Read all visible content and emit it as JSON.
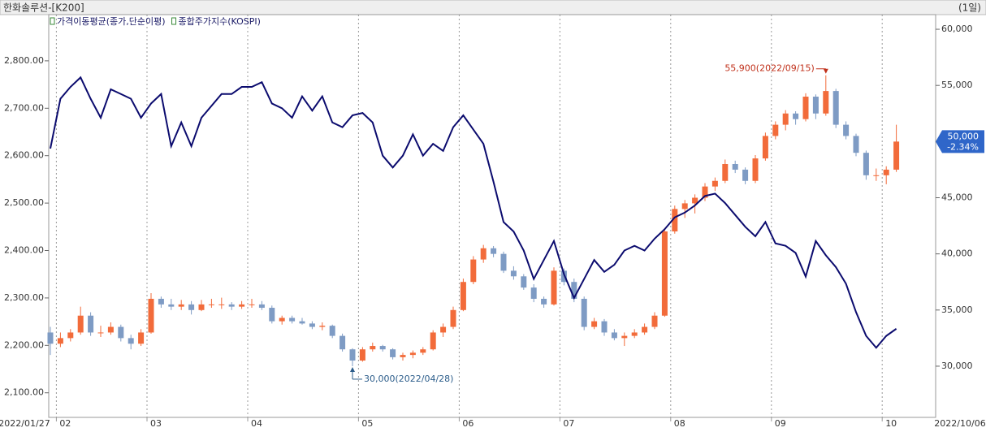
{
  "chart_data": {
    "type": "candlestick",
    "title": "한화솔루션-[K200]",
    "period": "(1일)",
    "start_date": "2022/01/27",
    "end_date": "2022/10/06",
    "categories": [
      null,
      "02",
      null,
      null,
      null,
      null,
      null,
      null,
      null,
      null,
      "03",
      null,
      null,
      null,
      null,
      null,
      null,
      null,
      null,
      null,
      "04",
      null,
      null,
      null,
      null,
      null,
      null,
      null,
      null,
      null,
      null,
      "05",
      null,
      null,
      null,
      null,
      null,
      null,
      null,
      null,
      null,
      "06",
      null,
      null,
      null,
      null,
      null,
      null,
      null,
      null,
      null,
      "07",
      null,
      null,
      null,
      null,
      null,
      null,
      null,
      null,
      null,
      null,
      "08",
      null,
      null,
      null,
      null,
      null,
      null,
      null,
      null,
      null,
      "09",
      null,
      null,
      null,
      null,
      null,
      null,
      null,
      null,
      null,
      null,
      "10",
      null
    ],
    "series": [
      {
        "name": "가격이동평균(종가,단순이평)",
        "type": "candlestick",
        "axis": "y2",
        "up_color": "#f26b3a",
        "down_color": "#7e9bc4",
        "open": [
          33000,
          32000,
          32500,
          33000,
          34500,
          33000,
          33000,
          33500,
          32500,
          32000,
          33000,
          36000,
          35500,
          35300,
          35500,
          35000,
          35500,
          35500,
          35500,
          35300,
          35500,
          35500,
          35200,
          34000,
          34300,
          34000,
          33800,
          33500,
          33600,
          32700,
          31500,
          30500,
          31500,
          31800,
          31500,
          30800,
          31000,
          31200,
          31500,
          33000,
          33500,
          35000,
          37500,
          39500,
          40500,
          40000,
          38500,
          38000,
          37000,
          36000,
          35500,
          38500,
          37500,
          36000,
          33500,
          34000,
          33000,
          32500,
          32700,
          33000,
          33500,
          34500,
          42000,
          44000,
          44500,
          45000,
          46000,
          46500,
          48000,
          47500,
          46500,
          48500,
          50500,
          51500,
          52500,
          52000,
          54000,
          52500,
          54500,
          51500,
          50500,
          49000,
          47000,
          47000,
          47500
        ],
        "high": [
          33500,
          33000,
          33300,
          35300,
          34800,
          33600,
          33900,
          33700,
          32800,
          33300,
          36500,
          36200,
          36000,
          35900,
          35800,
          35900,
          36000,
          36100,
          35700,
          35800,
          36000,
          35800,
          35400,
          34500,
          34500,
          34300,
          34000,
          33900,
          33700,
          32900,
          31600,
          31700,
          32100,
          31900,
          31600,
          31200,
          31400,
          31700,
          33200,
          33800,
          35300,
          37800,
          39800,
          40800,
          40700,
          40200,
          38900,
          38200,
          37300,
          36200,
          38800,
          38700,
          37800,
          36200,
          34300,
          34200,
          33300,
          33000,
          33300,
          33800,
          34800,
          42300,
          44300,
          44800,
          45300,
          46300,
          46800,
          48400,
          48300,
          47700,
          48800,
          50800,
          51800,
          52800,
          52700,
          54300,
          54200,
          55900,
          54700,
          51800,
          50700,
          49200,
          47600,
          47800,
          51500
        ],
        "low": [
          31000,
          31700,
          32200,
          32800,
          32700,
          32600,
          32800,
          32200,
          31500,
          31800,
          32900,
          35200,
          35000,
          35000,
          34600,
          34900,
          35200,
          35100,
          35000,
          35100,
          35200,
          35000,
          33800,
          33700,
          33800,
          33700,
          33300,
          33200,
          32500,
          31300,
          30000,
          30400,
          31300,
          31300,
          30600,
          30500,
          30700,
          31000,
          31400,
          32600,
          33300,
          34900,
          37300,
          39200,
          39700,
          38300,
          37700,
          36800,
          35700,
          35200,
          35400,
          37200,
          35700,
          33200,
          33300,
          32700,
          32300,
          31800,
          32500,
          32800,
          33300,
          34400,
          41800,
          43200,
          43600,
          44700,
          45600,
          46300,
          47200,
          46200,
          46300,
          48300,
          50200,
          51000,
          51500,
          51800,
          52000,
          52300,
          51200,
          50200,
          48700,
          46600,
          46500,
          46200,
          47300
        ],
        "close": [
          32000,
          32500,
          33000,
          34500,
          33000,
          33000,
          33500,
          32500,
          32000,
          33000,
          36000,
          35500,
          35300,
          35500,
          35000,
          35500,
          35500,
          35500,
          35300,
          35500,
          35500,
          35200,
          34000,
          34300,
          34000,
          33800,
          33500,
          33600,
          32700,
          31500,
          30500,
          31500,
          31800,
          31500,
          30800,
          31000,
          31200,
          31500,
          33000,
          33500,
          35000,
          37500,
          39500,
          40500,
          40000,
          38500,
          38000,
          37000,
          36000,
          35500,
          38500,
          37500,
          36000,
          33500,
          34000,
          33000,
          32500,
          32700,
          33000,
          33500,
          34500,
          42000,
          44000,
          44500,
          45000,
          46000,
          46500,
          48000,
          47500,
          46500,
          48500,
          50500,
          51500,
          52500,
          52000,
          54000,
          52500,
          54500,
          51500,
          50500,
          49000,
          47000,
          47000,
          47500,
          50000
        ]
      },
      {
        "name": "종합주가지수(KOSPI)",
        "type": "line",
        "color": "#0b0b6e",
        "values": [
          2615,
          2720,
          2745,
          2765,
          2720,
          2680,
          2740,
          2730,
          2720,
          2680,
          2710,
          2730,
          2620,
          2670,
          2620,
          2680,
          2705,
          2730,
          2730,
          2745,
          2745,
          2755,
          2710,
          2700,
          2680,
          2725,
          2695,
          2725,
          2670,
          2660,
          2685,
          2690,
          2670,
          2600,
          2575,
          2600,
          2645,
          2600,
          2625,
          2610,
          2660,
          2685,
          2655,
          2625,
          2545,
          2460,
          2440,
          2400,
          2340,
          2380,
          2420,
          2350,
          2300,
          2340,
          2380,
          2355,
          2370,
          2400,
          2410,
          2400,
          2425,
          2445,
          2470,
          2480,
          2495,
          2515,
          2520,
          2500,
          2475,
          2450,
          2430,
          2460,
          2415,
          2410,
          2395,
          2345,
          2420,
          2390,
          2365,
          2330,
          2270,
          2220,
          2195,
          2220,
          2235
        ]
      }
    ],
    "ylim": [
      2055,
      2894
    ],
    "yticks": [
      {
        "value": 2100,
        "label": "2,100.00"
      },
      {
        "value": 2200,
        "label": "2,200.00"
      },
      {
        "value": 2300,
        "label": "2,300.00"
      },
      {
        "value": 2400,
        "label": "2,400.00"
      },
      {
        "value": 2500,
        "label": "2,500.00"
      },
      {
        "value": 2600,
        "label": "2,600.00"
      },
      {
        "value": 2700,
        "label": "2,700.00"
      },
      {
        "value": 2800,
        "label": "2,800.00"
      }
    ],
    "y2lim": [
      25730,
      61160
    ],
    "y2ticks": [
      {
        "value": 30000,
        "label": "30,000"
      },
      {
        "value": 35000,
        "label": "35,000"
      },
      {
        "value": 40000,
        "label": "40,000"
      },
      {
        "value": 45000,
        "label": "45,000"
      },
      {
        "value": 50000,
        "label": "50,000"
      },
      {
        "value": 55000,
        "label": "55,000"
      },
      {
        "value": 60000,
        "label": "60,000"
      }
    ],
    "annotations": [
      {
        "value": 55900,
        "label": "55,900(2022/09/15)",
        "color": "#c0301a"
      },
      {
        "value": 30000,
        "label": "30,000(2022/04/28)",
        "color": "#2b5c8a"
      }
    ],
    "price_marker": {
      "value": 50000,
      "label": "50,000",
      "change": "-2.34%",
      "color": "#2f66c9"
    }
  }
}
